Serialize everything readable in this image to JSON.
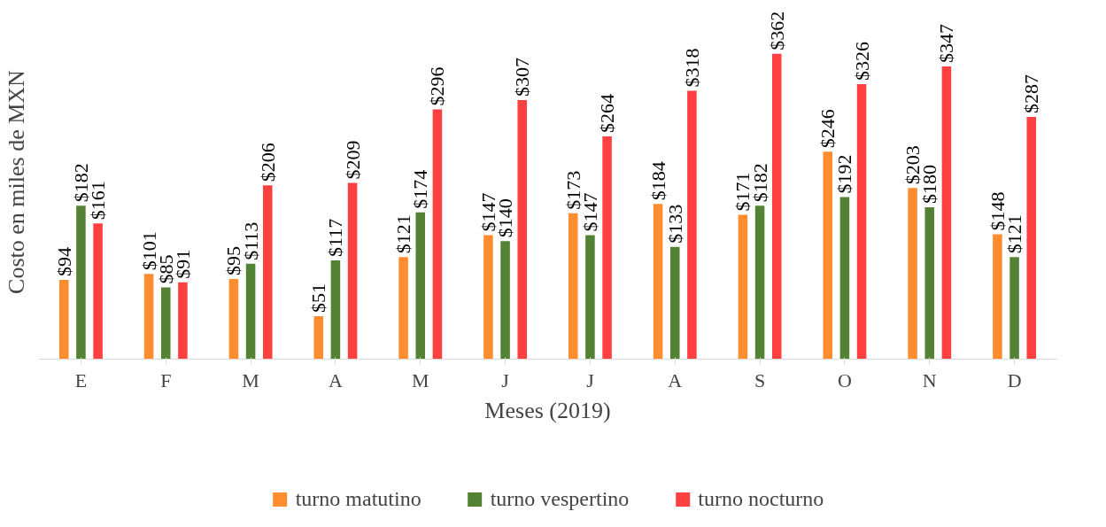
{
  "chart_data": {
    "type": "bar",
    "xlabel": "Meses (2019)",
    "ylabel": "Costo en miles de MXN",
    "categories": [
      "E",
      "F",
      "M",
      "A",
      "M",
      "J",
      "J",
      "A",
      "S",
      "O",
      "N",
      "D"
    ],
    "series": [
      {
        "name": "turno matutino",
        "color": "#ff8c2e",
        "values": [
          94,
          101,
          95,
          51,
          121,
          147,
          173,
          184,
          171,
          246,
          203,
          148
        ],
        "value_labels": [
          "$94",
          "$101",
          "$95",
          "$51",
          "$121",
          "$147",
          "$173",
          "$184",
          "$171",
          "$246",
          "$203",
          "$148"
        ]
      },
      {
        "name": "turno vespertino",
        "color": "#548235",
        "values": [
          182,
          85,
          113,
          117,
          174,
          140,
          147,
          133,
          182,
          192,
          180,
          121
        ],
        "value_labels": [
          "$182",
          "$85",
          "$113",
          "$117",
          "$174",
          "$140",
          "$147",
          "$133",
          "$182",
          "$192",
          "$180",
          "$121"
        ]
      },
      {
        "name": "turno nocturno",
        "color": "#ff4040",
        "values": [
          161,
          91,
          206,
          209,
          296,
          307,
          264,
          318,
          362,
          326,
          347,
          287
        ],
        "value_labels": [
          "$161",
          "$91",
          "$206",
          "$209",
          "$296",
          "$307",
          "$264",
          "$318",
          "$362",
          "$326",
          "$347",
          "$287"
        ]
      }
    ],
    "grid": false,
    "legend": "bottom"
  }
}
